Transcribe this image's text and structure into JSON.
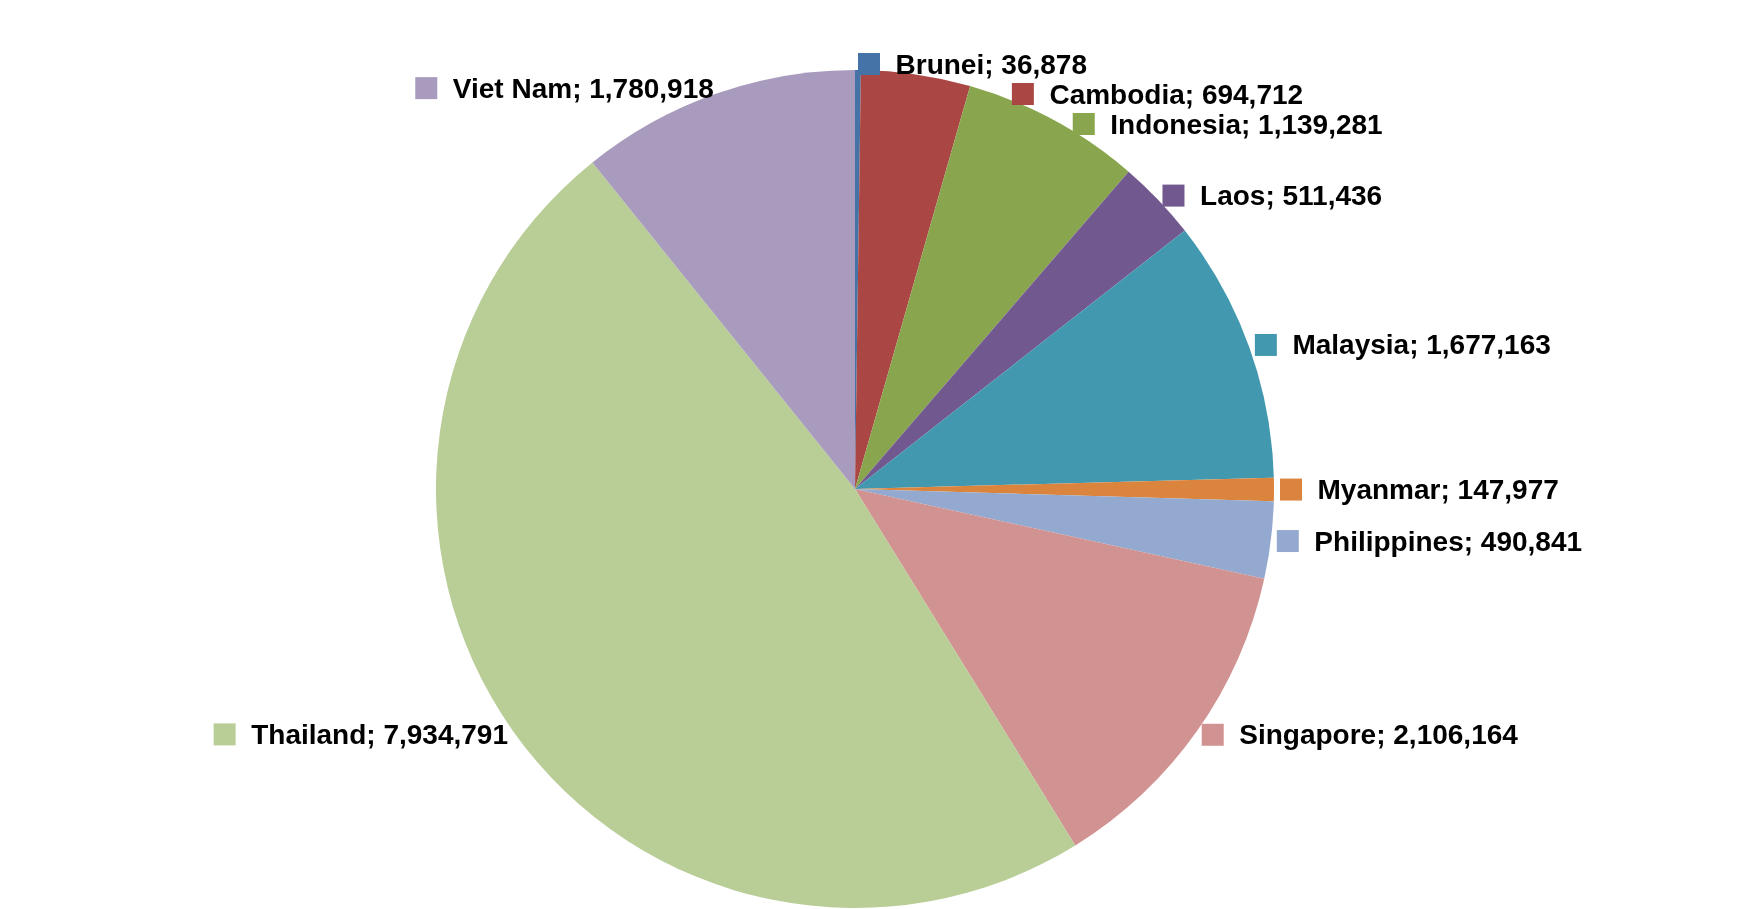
{
  "chart_data": {
    "type": "pie",
    "categories": [
      "Brunei",
      "Cambodia",
      "Indonesia",
      "Laos",
      "Malaysia",
      "Myanmar",
      "Philippines",
      "Singapore",
      "Thailand",
      "Viet Nam"
    ],
    "values": [
      36878,
      694712,
      1139281,
      511436,
      1677163,
      147977,
      490841,
      2106164,
      7934791,
      1780918
    ],
    "value_labels": [
      "; 36,878",
      "; 694,712",
      "; 1,139,281",
      "; 511,436",
      "; 1,677,163",
      "; 147,977",
      "; 490,841",
      "; 2,106,164",
      "; 7,934,791",
      "; 1,780,918"
    ],
    "legend": "right",
    "colors": [
      "#4572a7",
      "#aa4643",
      "#89a54e",
      "#71588f",
      "#4198af",
      "#db843d",
      "#93a9cf",
      "#d19392",
      "#b9cd96",
      "#a99bbd"
    ]
  }
}
